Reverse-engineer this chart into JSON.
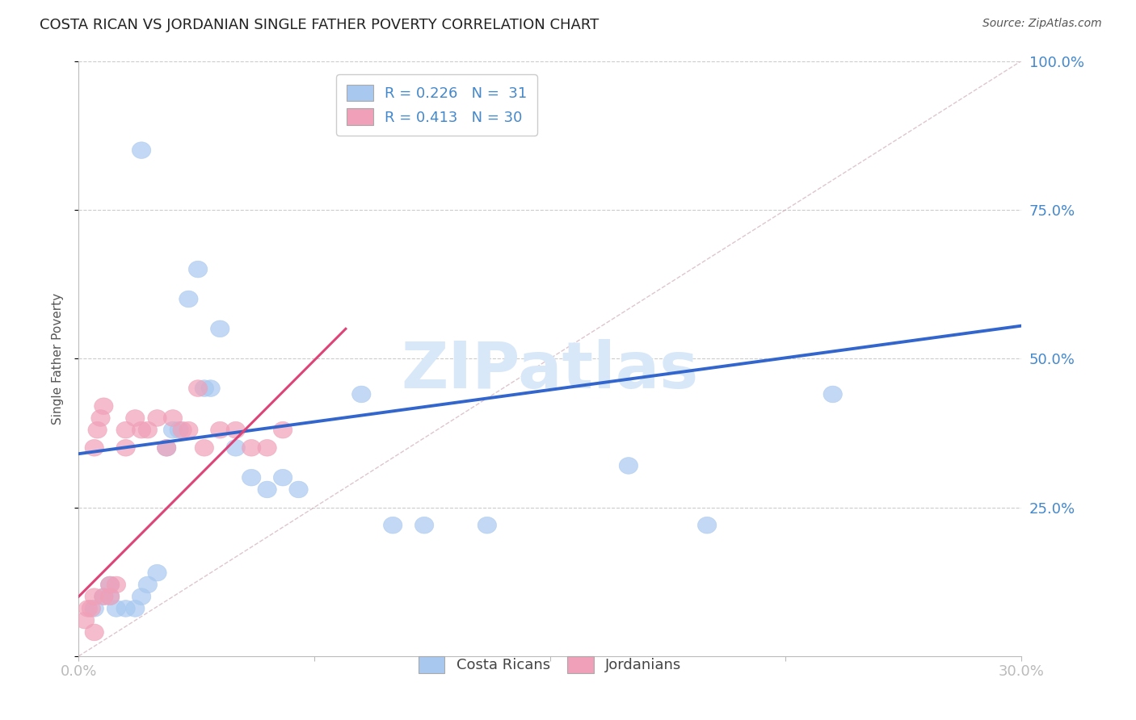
{
  "title": "COSTA RICAN VS JORDANIAN SINGLE FATHER POVERTY CORRELATION CHART",
  "source": "Source: ZipAtlas.com",
  "ylabel": "Single Father Poverty",
  "xlim": [
    0.0,
    0.3
  ],
  "ylim": [
    0.0,
    1.0
  ],
  "blue_R": 0.226,
  "blue_N": 31,
  "pink_R": 0.413,
  "pink_N": 30,
  "blue_color": "#A8C8F0",
  "pink_color": "#F0A0B8",
  "blue_line_color": "#3366CC",
  "pink_line_color": "#DD4477",
  "diag_color": "#C8A0B0",
  "watermark_color": "#D8E8F8",
  "blue_scatter_x": [
    0.02,
    0.005,
    0.008,
    0.01,
    0.01,
    0.012,
    0.015,
    0.018,
    0.02,
    0.022,
    0.025,
    0.028,
    0.03,
    0.032,
    0.035,
    0.038,
    0.04,
    0.042,
    0.045,
    0.05,
    0.055,
    0.06,
    0.065,
    0.07,
    0.09,
    0.1,
    0.11,
    0.13,
    0.175,
    0.2,
    0.24
  ],
  "blue_scatter_y": [
    0.85,
    0.08,
    0.1,
    0.1,
    0.12,
    0.08,
    0.08,
    0.08,
    0.1,
    0.12,
    0.14,
    0.35,
    0.38,
    0.38,
    0.6,
    0.65,
    0.45,
    0.45,
    0.55,
    0.35,
    0.3,
    0.28,
    0.3,
    0.28,
    0.44,
    0.22,
    0.22,
    0.22,
    0.32,
    0.22,
    0.44
  ],
  "pink_scatter_x": [
    0.002,
    0.003,
    0.004,
    0.005,
    0.005,
    0.006,
    0.007,
    0.008,
    0.008,
    0.01,
    0.01,
    0.012,
    0.015,
    0.015,
    0.018,
    0.02,
    0.022,
    0.025,
    0.028,
    0.03,
    0.033,
    0.035,
    0.038,
    0.04,
    0.045,
    0.05,
    0.055,
    0.06,
    0.065,
    0.005
  ],
  "pink_scatter_y": [
    0.06,
    0.08,
    0.08,
    0.1,
    0.35,
    0.38,
    0.4,
    0.42,
    0.1,
    0.1,
    0.12,
    0.12,
    0.35,
    0.38,
    0.4,
    0.38,
    0.38,
    0.4,
    0.35,
    0.4,
    0.38,
    0.38,
    0.45,
    0.35,
    0.38,
    0.38,
    0.35,
    0.35,
    0.38,
    0.04
  ]
}
